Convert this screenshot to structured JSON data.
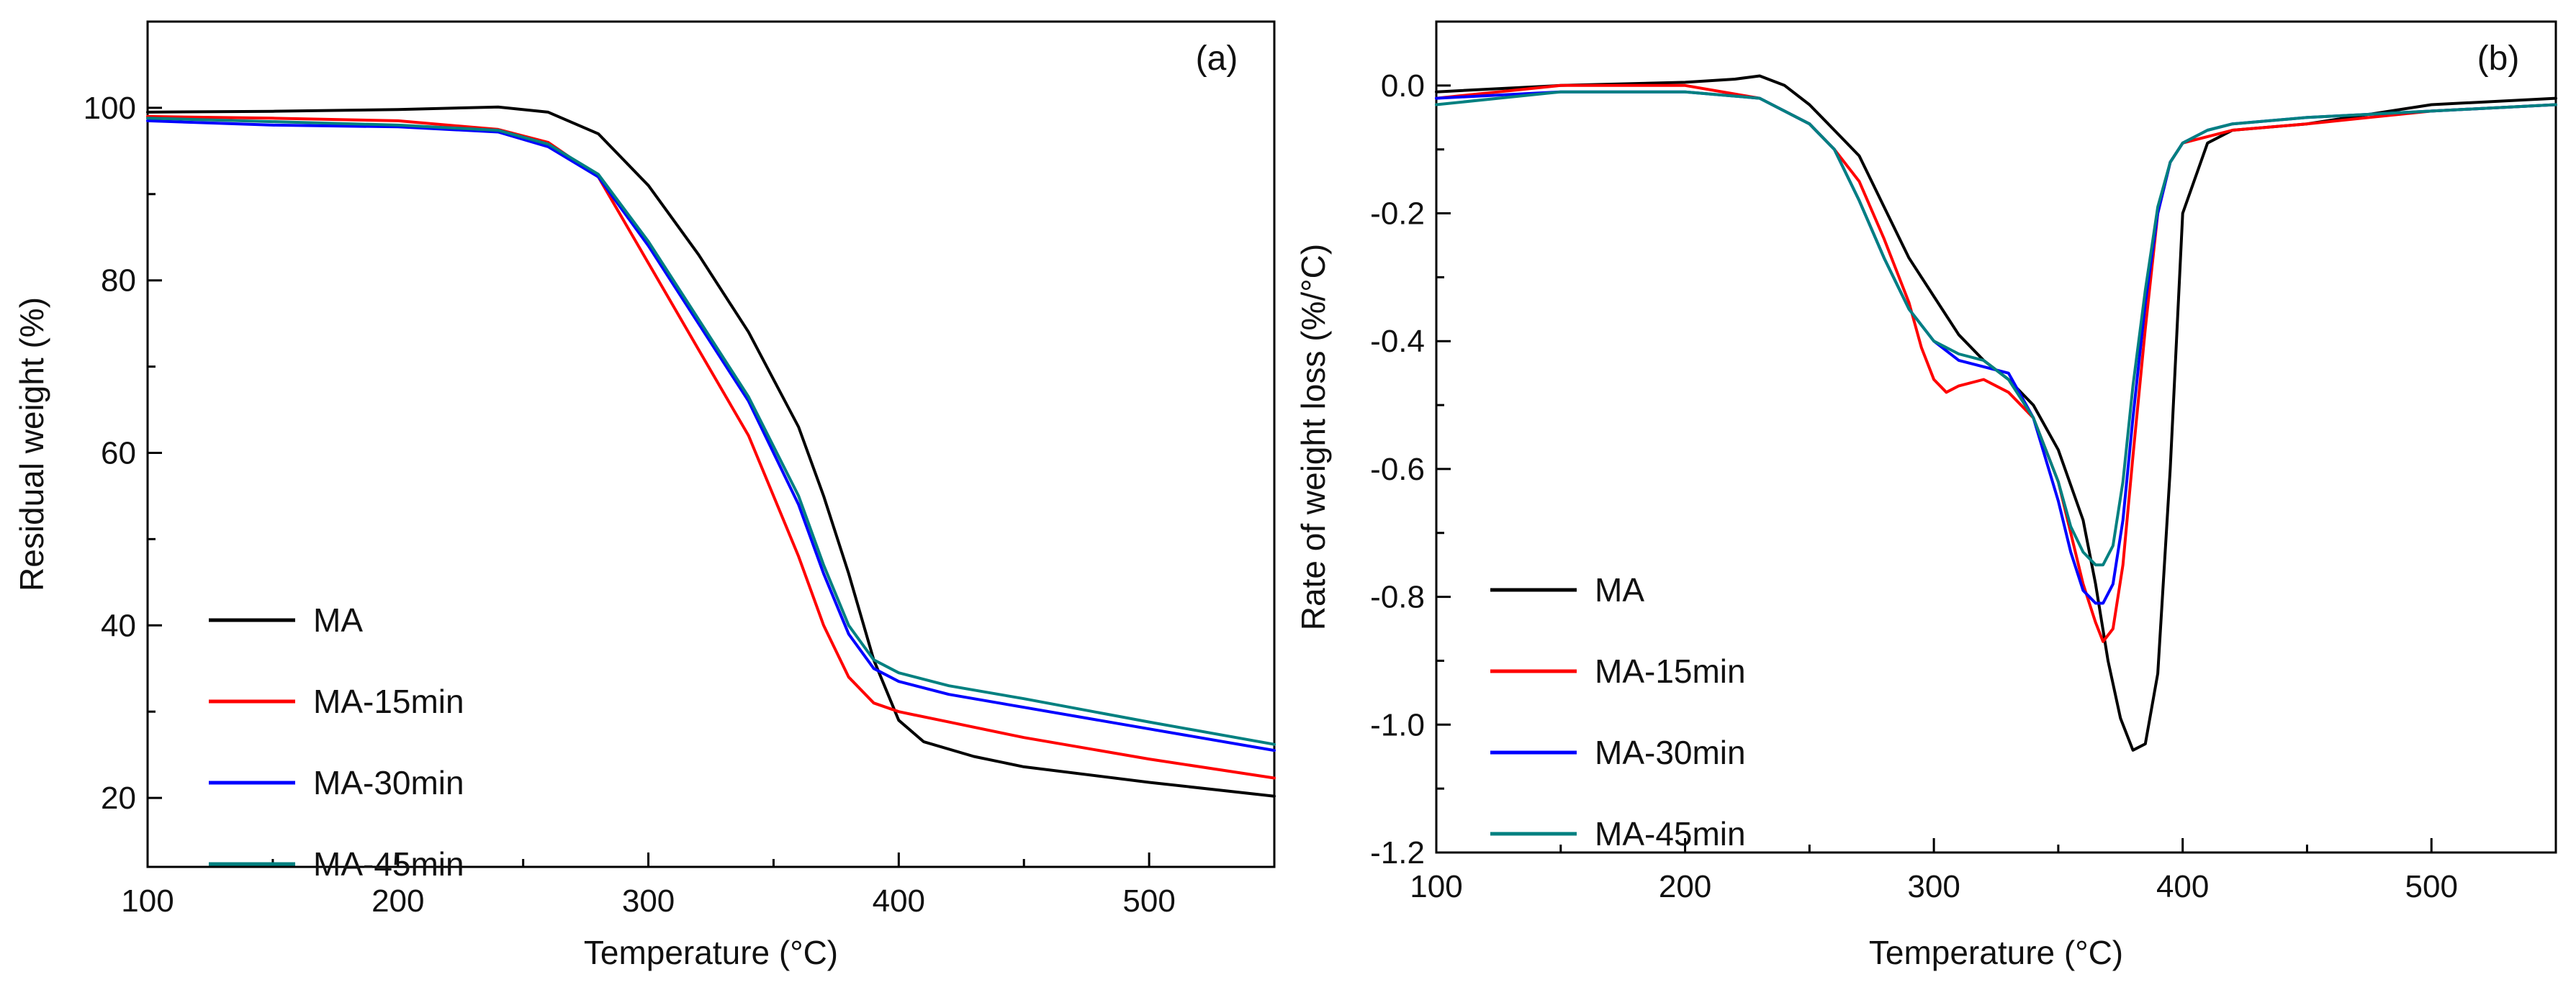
{
  "chart_data": [
    {
      "type": "line",
      "panel_label": "(a)",
      "xlabel": "Temperature (°C)",
      "ylabel": "Residual weight (%)",
      "xlim": [
        100,
        550
      ],
      "ylim": [
        12,
        110
      ],
      "xticks": [
        100,
        200,
        300,
        400,
        500
      ],
      "yticks": [
        20,
        40,
        60,
        80,
        100
      ],
      "legend_position": "bottom-left",
      "series": [
        {
          "name": "MA",
          "color": "#000000",
          "x": [
            100,
            150,
            200,
            240,
            260,
            280,
            300,
            320,
            340,
            360,
            370,
            380,
            390,
            400,
            410,
            430,
            450,
            500,
            550
          ],
          "y": [
            99.5,
            99.6,
            99.8,
            100.1,
            99.5,
            97,
            91,
            83,
            74,
            63,
            55,
            46,
            36,
            29,
            26.5,
            24.8,
            23.6,
            21.8,
            20.2
          ]
        },
        {
          "name": "MA-15min",
          "color": "#ff0000",
          "x": [
            100,
            150,
            200,
            240,
            260,
            280,
            300,
            320,
            340,
            360,
            370,
            380,
            390,
            400,
            420,
            450,
            500,
            550
          ],
          "y": [
            99,
            98.8,
            98.5,
            97.5,
            96,
            92,
            82,
            72,
            62,
            48,
            40,
            34,
            31,
            30,
            28.8,
            27,
            24.5,
            22.3
          ]
        },
        {
          "name": "MA-30min",
          "color": "#0000ff",
          "x": [
            100,
            150,
            200,
            240,
            260,
            280,
            300,
            320,
            340,
            360,
            370,
            380,
            390,
            400,
            420,
            450,
            500,
            550
          ],
          "y": [
            98.5,
            98,
            97.8,
            97.2,
            95.5,
            92,
            84,
            75,
            66,
            54,
            46,
            39,
            35,
            33.5,
            32,
            30.5,
            28,
            25.5
          ]
        },
        {
          "name": "MA-45min",
          "color": "#008080",
          "x": [
            100,
            150,
            200,
            240,
            260,
            280,
            300,
            320,
            340,
            360,
            370,
            380,
            390,
            400,
            420,
            450,
            500,
            550
          ],
          "y": [
            98.8,
            98.4,
            98,
            97.4,
            95.8,
            92.3,
            84.5,
            75.5,
            66.5,
            55,
            47,
            40,
            36,
            34.5,
            33,
            31.5,
            28.8,
            26.2
          ]
        }
      ]
    },
    {
      "type": "line",
      "panel_label": "(b)",
      "xlabel": "Temperature (°C)",
      "ylabel": "Rate of weight loss (%/°C)",
      "xlim": [
        100,
        550
      ],
      "ylim": [
        -1.2,
        0.1
      ],
      "xticks": [
        100,
        200,
        300,
        400,
        500
      ],
      "yticks": [
        0.0,
        -0.2,
        -0.4,
        -0.6,
        -0.8,
        -1.0,
        -1.2
      ],
      "legend_position": "bottom-left",
      "series": [
        {
          "name": "MA",
          "color": "#000000",
          "x": [
            100,
            150,
            200,
            220,
            230,
            240,
            250,
            260,
            270,
            280,
            290,
            300,
            310,
            320,
            330,
            340,
            350,
            360,
            365,
            370,
            375,
            380,
            385,
            390,
            395,
            400,
            410,
            420,
            450,
            500,
            550
          ],
          "y": [
            -0.01,
            0.0,
            0.005,
            0.01,
            0.015,
            0.0,
            -0.03,
            -0.07,
            -0.11,
            -0.19,
            -0.27,
            -0.33,
            -0.39,
            -0.43,
            -0.46,
            -0.5,
            -0.57,
            -0.68,
            -0.78,
            -0.9,
            -0.99,
            -1.04,
            -1.03,
            -0.92,
            -0.6,
            -0.2,
            -0.09,
            -0.07,
            -0.06,
            -0.03,
            -0.02
          ]
        },
        {
          "name": "MA-15min",
          "color": "#ff0000",
          "x": [
            100,
            150,
            200,
            230,
            250,
            260,
            270,
            280,
            290,
            295,
            300,
            305,
            310,
            320,
            330,
            340,
            350,
            355,
            360,
            365,
            368,
            372,
            376,
            380,
            385,
            390,
            395,
            400,
            410,
            420,
            450,
            500,
            550
          ],
          "y": [
            -0.02,
            0.0,
            0.0,
            -0.02,
            -0.06,
            -0.1,
            -0.15,
            -0.24,
            -0.34,
            -0.41,
            -0.46,
            -0.48,
            -0.47,
            -0.46,
            -0.48,
            -0.52,
            -0.62,
            -0.7,
            -0.78,
            -0.84,
            -0.87,
            -0.85,
            -0.75,
            -0.58,
            -0.38,
            -0.2,
            -0.12,
            -0.09,
            -0.08,
            -0.07,
            -0.06,
            -0.04,
            -0.03
          ]
        },
        {
          "name": "MA-30min",
          "color": "#0000ff",
          "x": [
            100,
            150,
            200,
            230,
            250,
            260,
            270,
            280,
            290,
            300,
            310,
            320,
            330,
            340,
            350,
            355,
            360,
            365,
            368,
            372,
            376,
            380,
            385,
            390,
            395,
            400,
            410,
            420,
            450,
            500,
            550
          ],
          "y": [
            -0.02,
            -0.01,
            -0.01,
            -0.02,
            -0.06,
            -0.1,
            -0.18,
            -0.27,
            -0.35,
            -0.4,
            -0.43,
            -0.44,
            -0.45,
            -0.52,
            -0.65,
            -0.73,
            -0.79,
            -0.81,
            -0.81,
            -0.78,
            -0.68,
            -0.52,
            -0.34,
            -0.2,
            -0.12,
            -0.09,
            -0.07,
            -0.06,
            -0.05,
            -0.04,
            -0.03
          ]
        },
        {
          "name": "MA-45min",
          "color": "#008080",
          "x": [
            100,
            150,
            200,
            230,
            250,
            260,
            270,
            280,
            290,
            300,
            310,
            320,
            330,
            340,
            350,
            355,
            360,
            365,
            368,
            372,
            376,
            380,
            385,
            390,
            395,
            400,
            410,
            420,
            450,
            500,
            550
          ],
          "y": [
            -0.03,
            -0.01,
            -0.01,
            -0.02,
            -0.06,
            -0.1,
            -0.18,
            -0.27,
            -0.35,
            -0.4,
            -0.42,
            -0.43,
            -0.46,
            -0.52,
            -0.62,
            -0.69,
            -0.73,
            -0.75,
            -0.75,
            -0.72,
            -0.62,
            -0.47,
            -0.32,
            -0.19,
            -0.12,
            -0.09,
            -0.07,
            -0.06,
            -0.05,
            -0.04,
            -0.03
          ]
        }
      ]
    }
  ]
}
